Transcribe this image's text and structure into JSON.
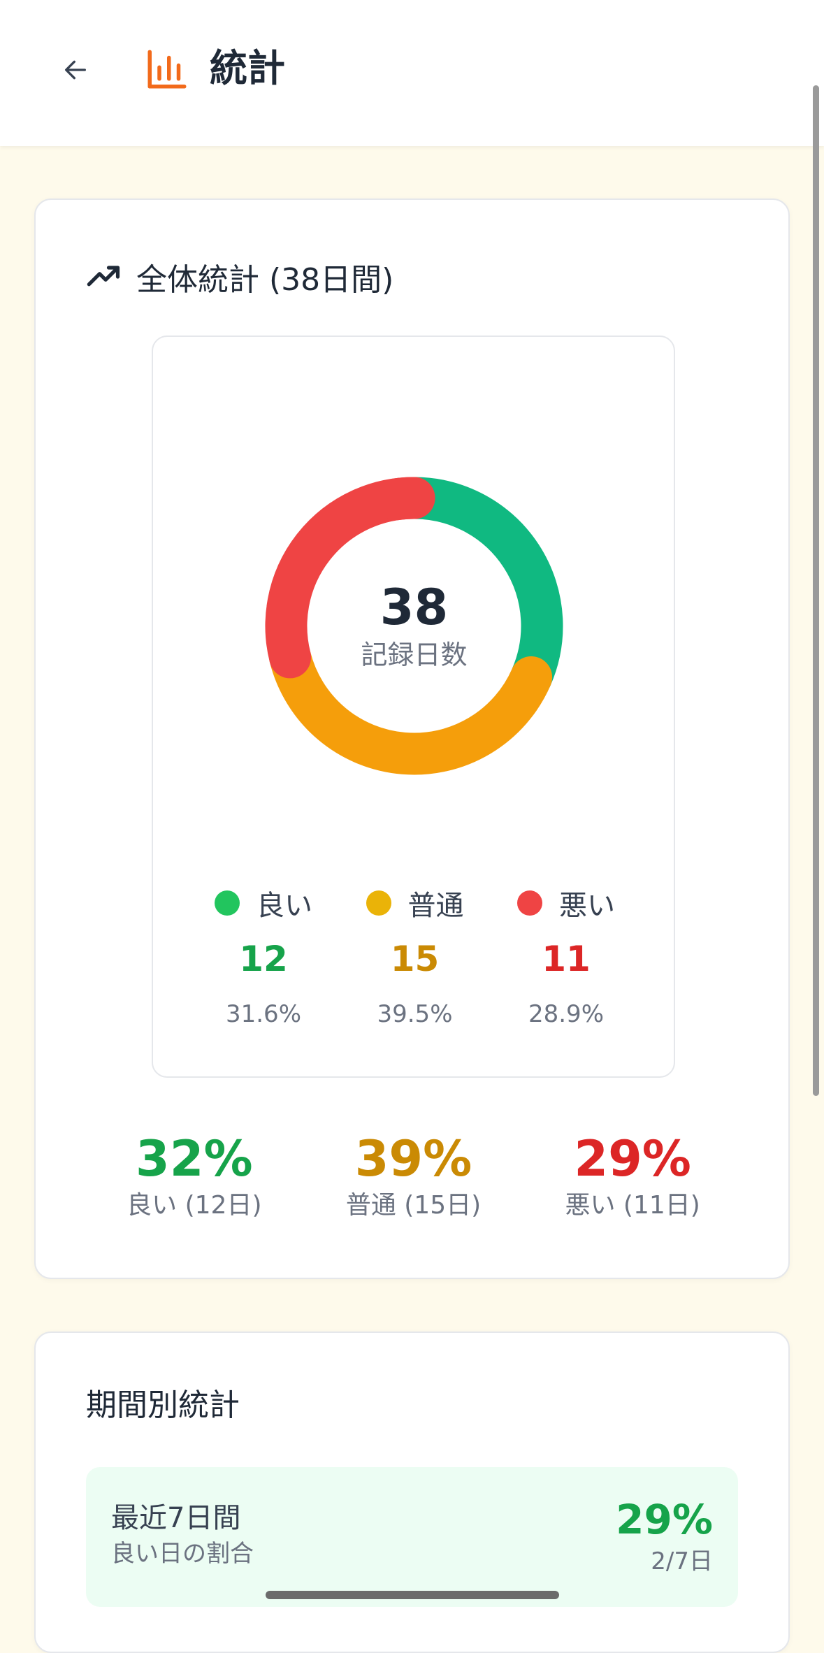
{
  "header": {
    "title": "統計",
    "back_icon": "arrow-left-icon",
    "title_icon": "bar-chart-icon"
  },
  "colors": {
    "accent": "#f26a1b",
    "good": "#16a34a",
    "normal": "#ca8a04",
    "bad": "#dc2626",
    "donut_good": "#10b981",
    "donut_normal": "#f59e0b",
    "donut_bad": "#ef4444",
    "dot_good": "#22c55e",
    "dot_normal": "#eab308",
    "dot_bad": "#ef4444"
  },
  "overall": {
    "title": "全体統計 (38日間)",
    "icon": "trending-up-icon",
    "center_value": "38",
    "center_label": "記録日数",
    "legend": [
      {
        "label": "良い",
        "count": "12",
        "percent": "31.6%"
      },
      {
        "label": "普通",
        "count": "15",
        "percent": "39.5%"
      },
      {
        "label": "悪い",
        "count": "11",
        "percent": "28.9%"
      }
    ],
    "summary": [
      {
        "percent": "32%",
        "label": "良い (12日)"
      },
      {
        "percent": "39%",
        "label": "普通 (15日)"
      },
      {
        "percent": "29%",
        "label": "悪い (11日)"
      }
    ]
  },
  "chart_data": {
    "type": "pie",
    "categories": [
      "良い",
      "普通",
      "悪い"
    ],
    "values": [
      12,
      15,
      11
    ],
    "total": 38,
    "title": ""
  },
  "period": {
    "title": "期間別統計",
    "rows": [
      {
        "label": "最近7日間",
        "sublabel": "良い日の割合",
        "percent": "29%",
        "days": "2/7日"
      }
    ]
  }
}
